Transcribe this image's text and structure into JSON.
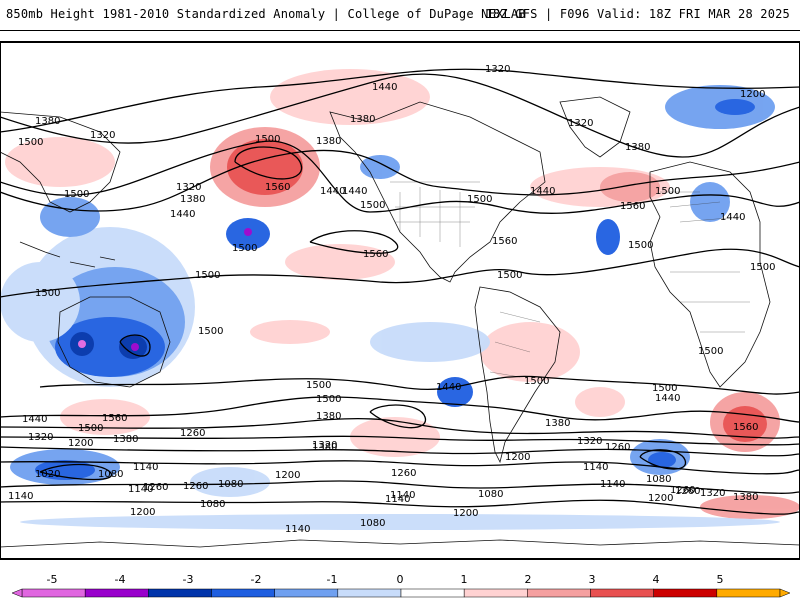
{
  "header": {
    "title": "850mb Height 1981-2010 Standardized Anomaly | College of DuPage NEXLAB",
    "run_info": "18Z GFS | F096 Valid: 18Z FRI MAR 28 2025"
  },
  "map": {
    "contour_labels": [
      "1320",
      "1440",
      "1380",
      "1200",
      "1380",
      "1320",
      "1500",
      "1440",
      "1500",
      "1380",
      "1320",
      "1380",
      "1560",
      "1320",
      "1500",
      "1440",
      "1380",
      "1500",
      "1440",
      "1440",
      "1500",
      "1560",
      "1500",
      "1560",
      "1500",
      "1500",
      "1440",
      "1500",
      "1500",
      "1500",
      "1500",
      "1560",
      "1500",
      "1500",
      "1500",
      "1440",
      "1500",
      "1440",
      "1500",
      "1500",
      "1380",
      "1380",
      "1560",
      "1440",
      "1560",
      "1500",
      "1320",
      "1380",
      "1260",
      "1260",
      "1320",
      "1260",
      "1380",
      "1320",
      "1260",
      "1200",
      "1200",
      "1140",
      "1080",
      "1020",
      "1080",
      "1140",
      "1080",
      "1140",
      "1200",
      "1260",
      "1140",
      "1080",
      "1200",
      "1260",
      "1140",
      "1080",
      "1140",
      "1200",
      "1320",
      "1380",
      "1260",
      "1200",
      "1140",
      "1080",
      "1140"
    ]
  },
  "legend": {
    "ticks": [
      "-5",
      "-4",
      "-3",
      "-2",
      "-1",
      "0",
      "1",
      "2",
      "3",
      "4",
      "5"
    ],
    "colors": [
      "#e066e0",
      "#9900cc",
      "#0033aa",
      "#1e5ee0",
      "#6fa0f0",
      "#c8dcfa",
      "#ffffff",
      "#ffd2d2",
      "#f5a0a0",
      "#e85050",
      "#cc0000",
      "#ffaa00"
    ]
  }
}
